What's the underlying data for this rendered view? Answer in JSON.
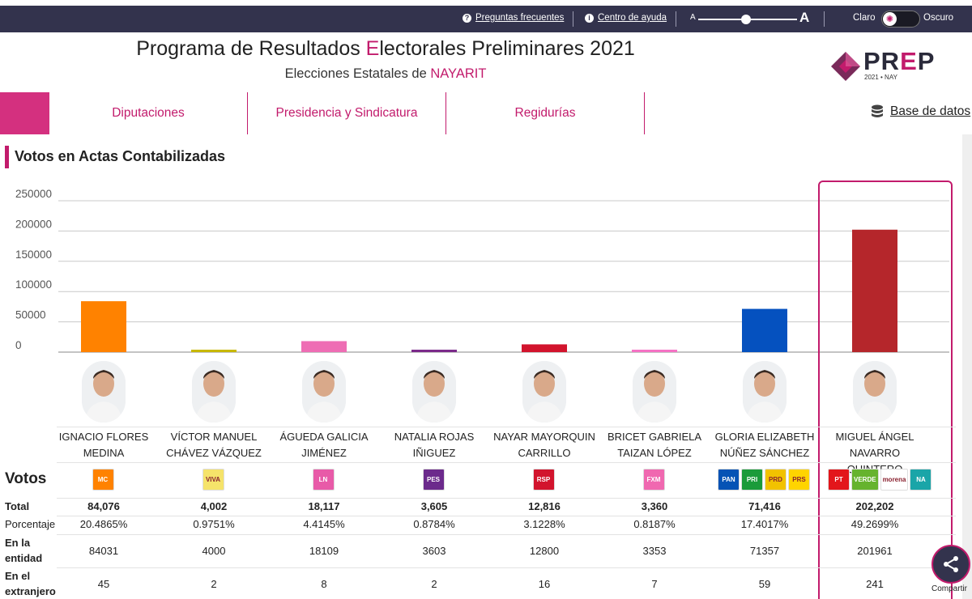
{
  "topbar": {
    "faq": "Preguntas frecuentes",
    "help": "Centro de ayuda",
    "font_small": "A",
    "font_large": "A",
    "theme_light": "Claro",
    "theme_dark": "Oscuro"
  },
  "header": {
    "title_pre": "Programa de Resultados ",
    "title_accent": "E",
    "title_post": "lectorales Preliminares 2021",
    "subtitle_pre": "Elecciones Estatales de ",
    "subtitle_state": "NAYARIT",
    "logo_pr": "PR",
    "logo_e": "E",
    "logo_p": "P",
    "logo_sub": "2021 • NAY"
  },
  "nav": {
    "tabs": [
      "Diputaciones",
      "Presidencia y Sindicatura",
      "Regidurías"
    ],
    "database": "Base de datos"
  },
  "section": {
    "title": "Votos en Actas Contabilizadas"
  },
  "chart_data": {
    "type": "bar",
    "categories": [
      "IGNACIO FLORES MEDINA",
      "VÍCTOR MANUEL CHÁVEZ VÁZQUEZ",
      "ÁGUEDA GALICIA JIMÉNEZ",
      "NATALIA ROJAS IÑIGUEZ",
      "NAYAR MAYORQUIN CARRILLO",
      "BRICET GABRIELA TAIZAN LÓPEZ",
      "GLORIA ELIZABETH NÚÑEZ SÁNCHEZ",
      "MIGUEL ÁNGEL NAVARRO QUINTERO"
    ],
    "values": [
      84076,
      4002,
      18117,
      3605,
      12816,
      3360,
      71416,
      202202
    ],
    "colors": [
      "#ff8200",
      "#c8b800",
      "#ee6db4",
      "#7b2a8a",
      "#d2142d",
      "#f572c4",
      "#0551bf",
      "#b5262b"
    ],
    "yticks": [
      "250000",
      "200000",
      "150000",
      "100000",
      "50000",
      "0"
    ],
    "ylim": [
      0,
      250000
    ],
    "grid": true
  },
  "table": {
    "header": "Votos",
    "candidates": [
      {
        "first": "IGNACIO FLORES",
        "last": "MEDINA",
        "parties": [
          {
            "name": "movimiento-ciudadano-icon",
            "color": "#ff8200",
            "text": "MC"
          }
        ],
        "total": "84,076",
        "pct": "20.4865%",
        "entidad": "84031",
        "extranjero": "45"
      },
      {
        "first": "VÍCTOR MANUEL",
        "last": "CHÁVEZ VÁZQUEZ",
        "parties": [
          {
            "name": "viva-icon",
            "color": "#f5e36a",
            "text": "VIVA"
          }
        ],
        "total": "4,002",
        "pct": "0.9751%",
        "entidad": "4000",
        "extranjero": "2"
      },
      {
        "first": "ÁGUEDA GALICIA",
        "last": "JIMÉNEZ",
        "parties": [
          {
            "name": "levantate-icon",
            "color": "#e85aa8",
            "text": "LN"
          }
        ],
        "total": "18,117",
        "pct": "4.4145%",
        "entidad": "18109",
        "extranjero": "8"
      },
      {
        "first": "NATALIA ROJAS",
        "last": "IÑIGUEZ",
        "parties": [
          {
            "name": "pes-icon",
            "color": "#6c2a8c",
            "text": "PES"
          }
        ],
        "total": "3,605",
        "pct": "0.8784%",
        "entidad": "3603",
        "extranjero": "2"
      },
      {
        "first": "NAYAR MAYORQUIN",
        "last": "CARRILLO",
        "parties": [
          {
            "name": "rsp-icon",
            "color": "#d2142d",
            "text": "RSP"
          }
        ],
        "total": "12,816",
        "pct": "3.1228%",
        "entidad": "12800",
        "extranjero": "16"
      },
      {
        "first": "BRICET GABRIELA",
        "last": "TAIZAN LÓPEZ",
        "parties": [
          {
            "name": "fuerza-mexico-icon",
            "color": "#f068b0",
            "text": "FXM"
          }
        ],
        "total": "3,360",
        "pct": "0.8187%",
        "entidad": "3353",
        "extranjero": "7"
      },
      {
        "first": "GLORIA ELIZABETH",
        "last": "NÚÑEZ SÁNCHEZ",
        "parties": [
          {
            "name": "pan-icon",
            "color": "#0553b5",
            "text": "PAN"
          },
          {
            "name": "pri-icon",
            "color": "#1a9b3a",
            "text": "PRI"
          },
          {
            "name": "prd-icon",
            "color": "#f2c200",
            "text": "PRD"
          },
          {
            "name": "pra-icon",
            "color": "#ffd400",
            "text": "PRS"
          }
        ],
        "total": "71,416",
        "pct": "17.4017%",
        "entidad": "71357",
        "extranjero": "59"
      },
      {
        "first": "MIGUEL ÁNGEL NAVARRO",
        "last": "QUINTERO",
        "parties": [
          {
            "name": "pt-icon",
            "color": "#e3161b",
            "text": "PT"
          },
          {
            "name": "pvem-icon",
            "color": "#66b32e",
            "text": "VERDE"
          },
          {
            "name": "morena-icon",
            "color": "#ffffff",
            "text": "morena"
          },
          {
            "name": "nueva-alianza-icon",
            "color": "#1aa5a8",
            "text": "NA"
          }
        ],
        "total": "202,202",
        "pct": "49.2699%",
        "entidad": "201961",
        "extranjero": "241"
      }
    ],
    "labels": {
      "total": "Total",
      "pct": "Porcentaje",
      "entidad_1": "En la",
      "entidad_2": "entidad",
      "extranjero_1": "En el",
      "extranjero_2": "extranjero"
    }
  },
  "share": {
    "label": "Compartir"
  }
}
